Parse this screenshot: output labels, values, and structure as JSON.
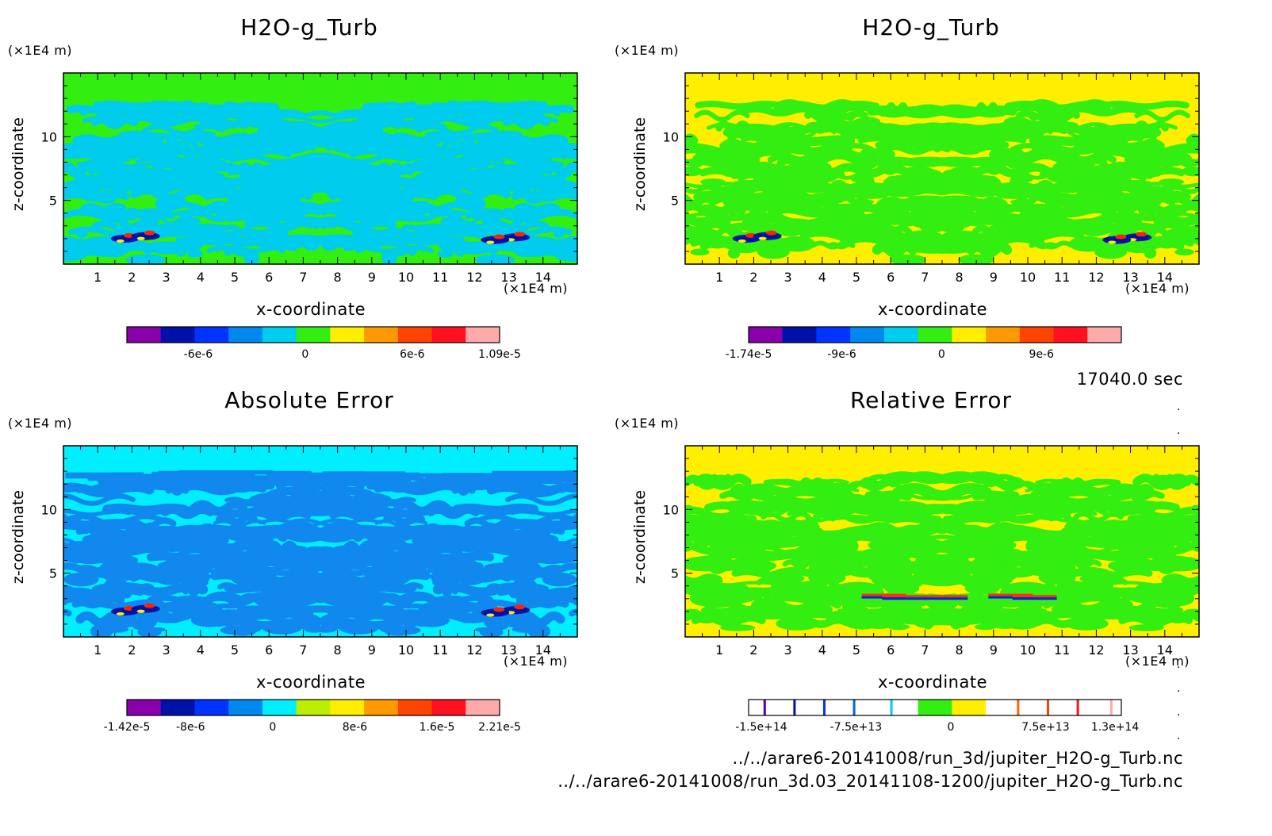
{
  "footer": {
    "time": "17040.0 sec",
    "file1": "../../arare6-20141008/run_3d/jupiter_H2O-g_Turb.nc",
    "file2": "../../arare6-20141008/run_3d.03_20141108-1200/jupiter_H2O-g_Turb.nc"
  },
  "chart_data": [
    {
      "type": "heatmap",
      "title": "H2O-g_Turb",
      "xlabel": "x-coordinate",
      "ylabel": "z-coordinate",
      "x_unit": "(×1E4 m)",
      "y_unit": "(×1E4 m)",
      "xlim": [
        0,
        15
      ],
      "ylim": [
        0,
        15
      ],
      "x_ticks": [
        1,
        2,
        3,
        4,
        5,
        6,
        7,
        8,
        9,
        10,
        11,
        12,
        13,
        14
      ],
      "y_ticks": [
        5,
        10
      ],
      "background": "#33ee11",
      "pattern": "#00ccee",
      "levels": [
        "#8800aa",
        "#0011aa",
        "#0033ff",
        "#0088ee",
        "#00ccee",
        "#33ee11",
        "#ffee00",
        "#ff9900",
        "#ff4400",
        "#ff1122",
        "#ffaaaa"
      ],
      "colorbar_labels": [
        {
          "text": "-6e-6",
          "value": -6e-06
        },
        {
          "text": "0",
          "value": 0
        },
        {
          "text": "6e-6",
          "value": 6e-06
        },
        {
          "text": "1.09e-5",
          "value": 1.09e-05
        }
      ],
      "colorbar_range": [
        -1e-05,
        1.09e-05
      ]
    },
    {
      "type": "heatmap",
      "title": "H2O-g_Turb",
      "xlabel": "x-coordinate",
      "ylabel": "z-coordinate",
      "x_unit": "(×1E4 m)",
      "y_unit": "(×1E4 m)",
      "xlim": [
        0,
        15
      ],
      "ylim": [
        0,
        15
      ],
      "x_ticks": [
        1,
        2,
        3,
        4,
        5,
        6,
        7,
        8,
        9,
        10,
        11,
        12,
        13,
        14
      ],
      "y_ticks": [
        5,
        10
      ],
      "background": "#ffee00",
      "pattern": "#33ee11",
      "levels": [
        "#8800aa",
        "#0011aa",
        "#0033ff",
        "#0088ee",
        "#00ccee",
        "#33ee11",
        "#ffee00",
        "#ff9900",
        "#ff4400",
        "#ff1122",
        "#ffaaaa"
      ],
      "colorbar_labels": [
        {
          "text": "-1.74e-5",
          "value": -1.74e-05
        },
        {
          "text": "-9e-6",
          "value": -9e-06
        },
        {
          "text": "0",
          "value": 0
        },
        {
          "text": "9e-6",
          "value": 9e-06
        }
      ],
      "colorbar_range": [
        -1.74e-05,
        1.62e-05
      ]
    },
    {
      "type": "heatmap",
      "title": "Absolute Error",
      "xlabel": "x-coordinate",
      "ylabel": "z-coordinate",
      "x_unit": "(×1E4 m)",
      "y_unit": "(×1E4 m)",
      "xlim": [
        0,
        15
      ],
      "ylim": [
        0,
        15
      ],
      "x_ticks": [
        1,
        2,
        3,
        4,
        5,
        6,
        7,
        8,
        9,
        10,
        11,
        12,
        13,
        14
      ],
      "y_ticks": [
        5,
        10
      ],
      "background": "#00eeff",
      "pattern": "#1188ee",
      "levels": [
        "#8800aa",
        "#0011aa",
        "#0033ff",
        "#0088ee",
        "#00eeff",
        "#bbee00",
        "#ffee00",
        "#ff9900",
        "#ff4400",
        "#ff1122",
        "#ffaaaa"
      ],
      "colorbar_labels": [
        {
          "text": "-1.42e-5",
          "value": -1.42e-05
        },
        {
          "text": "-8e-6",
          "value": -8e-06
        },
        {
          "text": "0",
          "value": 0
        },
        {
          "text": "8e-6",
          "value": 8e-06
        },
        {
          "text": "1.6e-5",
          "value": 1.6e-05
        },
        {
          "text": "2.21e-5",
          "value": 2.21e-05
        }
      ],
      "colorbar_range": [
        -1.42e-05,
        2.21e-05
      ]
    },
    {
      "type": "heatmap",
      "title": "Relative Error",
      "xlabel": "x-coordinate",
      "ylabel": "z-coordinate",
      "x_unit": "(×1E4 m)",
      "y_unit": "(×1E4 m)",
      "xlim": [
        0,
        15
      ],
      "ylim": [
        0,
        15
      ],
      "x_ticks": [
        1,
        2,
        3,
        4,
        5,
        6,
        7,
        8,
        9,
        10,
        11,
        12,
        13,
        14
      ],
      "y_ticks": [
        5,
        10
      ],
      "background": "#ffee00",
      "pattern": "#33ee11",
      "levels": [
        "#ffffff",
        "#ffffff",
        "#ffffff",
        "#ffffff",
        "#ffffff",
        "#33ee11",
        "#ffee00",
        "#ffffff",
        "#ffffff",
        "#ffffff",
        "#ffffff"
      ],
      "colorbar_labels": [
        {
          "text": "-1.5e+14",
          "value": -150000000000000.0
        },
        {
          "text": "-7.5e+13",
          "value": -75000000000000.0
        },
        {
          "text": "0",
          "value": 0
        },
        {
          "text": "7.5e+13",
          "value": 75000000000000.0
        },
        {
          "text": "1.3e+14",
          "value": 130000000000000.0
        }
      ],
      "colorbar_range": [
        -160000000000000.0,
        135000000000000.0
      ]
    }
  ]
}
